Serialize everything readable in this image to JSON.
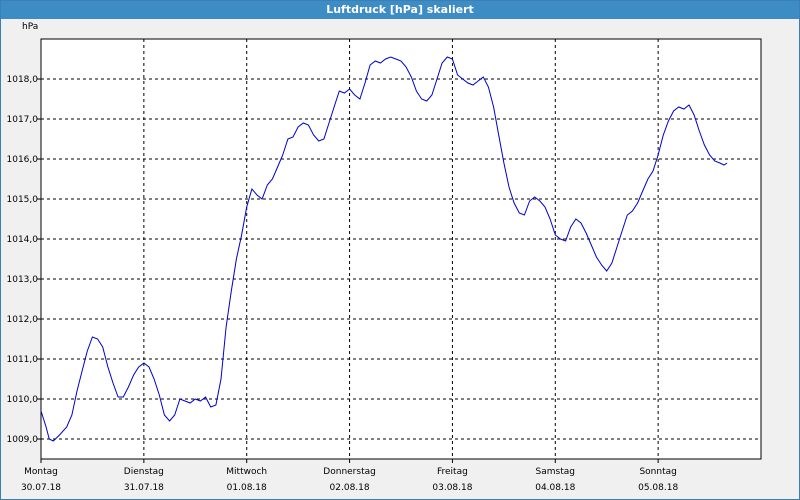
{
  "window": {
    "title": "Luftdruck [hPa] skaliert"
  },
  "colors": {
    "title_bar": "#3d8cc4",
    "series": "#0000cc",
    "grid": "#000000",
    "plot_bg": "#ffffff"
  },
  "chart_data": {
    "type": "line",
    "title": "Luftdruck [hPa] skaliert",
    "ylabel": "hPa",
    "xlabel": "",
    "ylim": [
      1008.5,
      1019.0
    ],
    "xlim": [
      0,
      7.0
    ],
    "grid": true,
    "y_ticks": [
      1009.0,
      1010.0,
      1011.0,
      1012.0,
      1013.0,
      1014.0,
      1015.0,
      1016.0,
      1017.0,
      1018.0
    ],
    "y_tick_labels": [
      "1009,0",
      "1010,0",
      "1011,0",
      "1012,0",
      "1013,0",
      "1014,0",
      "1015,0",
      "1016,0",
      "1017,0",
      "1018,0"
    ],
    "x_ticks": [
      0,
      1,
      2,
      3,
      4,
      5,
      6
    ],
    "x_tick_labels": [
      {
        "day": "Montag",
        "date": "30.07.18"
      },
      {
        "day": "Dienstag",
        "date": "31.07.18"
      },
      {
        "day": "Mittwoch",
        "date": "01.08.18"
      },
      {
        "day": "Donnerstag",
        "date": "02.08.18"
      },
      {
        "day": "Freitag",
        "date": "03.08.18"
      },
      {
        "day": "Samstag",
        "date": "04.08.18"
      },
      {
        "day": "Sonntag",
        "date": "05.08.18"
      }
    ],
    "series": [
      {
        "values": [
          [
            0.0,
            1009.7
          ],
          [
            0.05,
            1009.3
          ],
          [
            0.08,
            1009.0
          ],
          [
            0.12,
            1008.95
          ],
          [
            0.18,
            1009.1
          ],
          [
            0.25,
            1009.3
          ],
          [
            0.3,
            1009.6
          ],
          [
            0.35,
            1010.2
          ],
          [
            0.4,
            1010.7
          ],
          [
            0.45,
            1011.2
          ],
          [
            0.5,
            1011.55
          ],
          [
            0.55,
            1011.5
          ],
          [
            0.6,
            1011.3
          ],
          [
            0.65,
            1010.8
          ],
          [
            0.7,
            1010.4
          ],
          [
            0.75,
            1010.05
          ],
          [
            0.8,
            1010.05
          ],
          [
            0.85,
            1010.3
          ],
          [
            0.9,
            1010.6
          ],
          [
            0.95,
            1010.8
          ],
          [
            1.0,
            1010.9
          ],
          [
            1.05,
            1010.8
          ],
          [
            1.1,
            1010.5
          ],
          [
            1.15,
            1010.1
          ],
          [
            1.2,
            1009.6
          ],
          [
            1.25,
            1009.45
          ],
          [
            1.3,
            1009.6
          ],
          [
            1.35,
            1010.0
          ],
          [
            1.4,
            1009.95
          ],
          [
            1.45,
            1009.9
          ],
          [
            1.5,
            1010.0
          ],
          [
            1.55,
            1009.95
          ],
          [
            1.6,
            1010.05
          ],
          [
            1.65,
            1009.8
          ],
          [
            1.7,
            1009.85
          ],
          [
            1.75,
            1010.5
          ],
          [
            1.8,
            1011.8
          ],
          [
            1.85,
            1012.7
          ],
          [
            1.9,
            1013.5
          ],
          [
            1.95,
            1014.1
          ],
          [
            2.0,
            1014.8
          ],
          [
            2.05,
            1015.25
          ],
          [
            2.1,
            1015.1
          ],
          [
            2.15,
            1015.0
          ],
          [
            2.2,
            1015.35
          ],
          [
            2.25,
            1015.5
          ],
          [
            2.3,
            1015.8
          ],
          [
            2.35,
            1016.1
          ],
          [
            2.4,
            1016.5
          ],
          [
            2.45,
            1016.55
          ],
          [
            2.5,
            1016.8
          ],
          [
            2.55,
            1016.9
          ],
          [
            2.6,
            1016.85
          ],
          [
            2.65,
            1016.6
          ],
          [
            2.7,
            1016.45
          ],
          [
            2.75,
            1016.5
          ],
          [
            2.8,
            1016.9
          ],
          [
            2.85,
            1017.3
          ],
          [
            2.9,
            1017.7
          ],
          [
            2.95,
            1017.65
          ],
          [
            3.0,
            1017.75
          ],
          [
            3.05,
            1017.6
          ],
          [
            3.1,
            1017.5
          ],
          [
            3.15,
            1017.9
          ],
          [
            3.2,
            1018.35
          ],
          [
            3.25,
            1018.45
          ],
          [
            3.3,
            1018.4
          ],
          [
            3.35,
            1018.5
          ],
          [
            3.4,
            1018.55
          ],
          [
            3.45,
            1018.5
          ],
          [
            3.5,
            1018.45
          ],
          [
            3.55,
            1018.3
          ],
          [
            3.6,
            1018.05
          ],
          [
            3.65,
            1017.7
          ],
          [
            3.7,
            1017.5
          ],
          [
            3.75,
            1017.45
          ],
          [
            3.8,
            1017.6
          ],
          [
            3.85,
            1018.0
          ],
          [
            3.9,
            1018.4
          ],
          [
            3.95,
            1018.55
          ],
          [
            4.0,
            1018.5
          ],
          [
            4.05,
            1018.1
          ],
          [
            4.1,
            1018.0
          ],
          [
            4.15,
            1017.9
          ],
          [
            4.2,
            1017.85
          ],
          [
            4.25,
            1017.95
          ],
          [
            4.3,
            1018.05
          ],
          [
            4.35,
            1017.8
          ],
          [
            4.4,
            1017.3
          ],
          [
            4.45,
            1016.6
          ],
          [
            4.5,
            1015.9
          ],
          [
            4.55,
            1015.3
          ],
          [
            4.6,
            1014.9
          ],
          [
            4.65,
            1014.65
          ],
          [
            4.7,
            1014.6
          ],
          [
            4.75,
            1014.95
          ],
          [
            4.8,
            1015.05
          ],
          [
            4.85,
            1014.95
          ],
          [
            4.9,
            1014.8
          ],
          [
            4.95,
            1014.5
          ],
          [
            5.0,
            1014.1
          ],
          [
            5.05,
            1014.0
          ],
          [
            5.1,
            1013.95
          ],
          [
            5.15,
            1014.3
          ],
          [
            5.2,
            1014.5
          ],
          [
            5.25,
            1014.4
          ],
          [
            5.3,
            1014.15
          ],
          [
            5.35,
            1013.85
          ],
          [
            5.4,
            1013.55
          ],
          [
            5.45,
            1013.35
          ],
          [
            5.5,
            1013.2
          ],
          [
            5.55,
            1013.4
          ],
          [
            5.6,
            1013.8
          ],
          [
            5.65,
            1014.2
          ],
          [
            5.7,
            1014.6
          ],
          [
            5.75,
            1014.7
          ],
          [
            5.8,
            1014.9
          ],
          [
            5.85,
            1015.2
          ],
          [
            5.9,
            1015.5
          ],
          [
            5.95,
            1015.7
          ],
          [
            6.0,
            1016.1
          ],
          [
            6.05,
            1016.6
          ],
          [
            6.1,
            1016.95
          ],
          [
            6.15,
            1017.2
          ],
          [
            6.2,
            1017.3
          ],
          [
            6.25,
            1017.25
          ],
          [
            6.3,
            1017.35
          ],
          [
            6.35,
            1017.1
          ],
          [
            6.4,
            1016.7
          ],
          [
            6.45,
            1016.35
          ],
          [
            6.5,
            1016.1
          ],
          [
            6.55,
            1015.95
          ],
          [
            6.6,
            1015.9
          ],
          [
            6.64,
            1015.85
          ],
          [
            6.67,
            1015.9
          ]
        ]
      }
    ]
  }
}
